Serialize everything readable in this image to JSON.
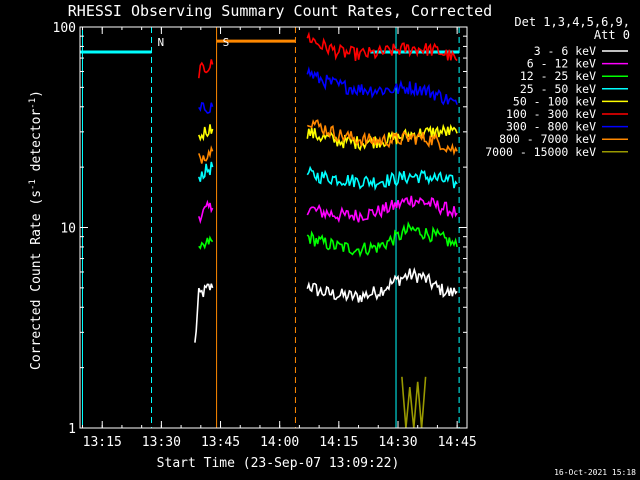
{
  "chart_data": {
    "type": "line",
    "title": "RHESSI Observing Summary Count Rates, Corrected",
    "xlabel": "Start Time (23-Sep-07 13:09:22)",
    "ylabel_main": "Corrected Count Rate (s",
    "ylabel_sup": "-1",
    "ylabel_mid": " detector",
    "ylabel_end": ")",
    "y_scale": "log",
    "ylim": [
      1,
      100
    ],
    "xlim": [
      "13:09:22",
      "14:47:30"
    ],
    "x_ticks": [
      "13:15",
      "13:30",
      "13:45",
      "14:00",
      "14:15",
      "14:30",
      "14:45"
    ],
    "y_ticks": [
      "1",
      "10",
      "100"
    ],
    "legend_header": [
      "Det 1,3,4,5,6,9,",
      "Att 0"
    ],
    "legend_position": "right",
    "footer_date": "16-Oct-2021 15:18",
    "attenuator_bar": {
      "color": "#00ffff",
      "value": 75,
      "segments": [
        [
          "13:09:22",
          "13:27:30"
        ],
        [
          "14:23:00",
          "14:45:30"
        ]
      ]
    },
    "saa_bar": {
      "color": "#ff8800",
      "value": 85,
      "segments": [
        [
          "13:44:00",
          "14:04:00"
        ]
      ]
    },
    "markers": [
      {
        "label": "N",
        "time": "13:27:30",
        "color": "#00ffff"
      },
      {
        "label": "S",
        "time": "13:44:00",
        "color": "#ff8800"
      }
    ],
    "vlines": [
      {
        "time": "13:10:00",
        "color": "#00ffff",
        "style": "solid"
      },
      {
        "time": "13:27:30",
        "color": "#00ffff",
        "style": "dashed"
      },
      {
        "time": "13:44:00",
        "color": "#ff8800",
        "style": "solid"
      },
      {
        "time": "14:04:00",
        "color": "#ff8800",
        "style": "dashed"
      },
      {
        "time": "14:29:30",
        "color": "#00ffff",
        "style": "solid"
      },
      {
        "time": "14:45:30",
        "color": "#00ffff",
        "style": "dashed"
      }
    ],
    "series": [
      {
        "name": "3 - 6 keV",
        "color": "#ffffff",
        "segments": [
          {
            "x": [
              "13:38:30",
              "13:39:30",
              "13:41:00",
              "13:42:00",
              "13:43:00"
            ],
            "y": [
              2.6,
              4.6,
              4.8,
              5.0,
              5.0
            ]
          },
          {
            "x": [
              "14:07:00",
              "14:10:00",
              "14:15:00",
              "14:20:00",
              "14:25:00",
              "14:30:00",
              "14:33:00",
              "14:36:00",
              "14:40:00",
              "14:43:00",
              "14:45:00"
            ],
            "y": [
              5.2,
              4.8,
              4.6,
              4.5,
              4.8,
              5.5,
              5.8,
              5.7,
              5.0,
              4.7,
              4.8
            ]
          }
        ]
      },
      {
        "name": "6 - 12 keV",
        "color": "#ff00ff",
        "segments": [
          {
            "x": [
              "13:39:30",
              "13:41:00",
              "13:42:00",
              "13:43:00"
            ],
            "y": [
              11.5,
              12.0,
              12.5,
              12.5
            ]
          },
          {
            "x": [
              "14:07:00",
              "14:10:00",
              "14:15:00",
              "14:20:00",
              "14:25:00",
              "14:30:00",
              "14:33:00",
              "14:36:00",
              "14:40:00",
              "14:43:00",
              "14:45:00"
            ],
            "y": [
              12.5,
              12.0,
              11.5,
              11.5,
              12.0,
              13.0,
              13.8,
              13.5,
              12.8,
              12.2,
              11.8
            ]
          }
        ]
      },
      {
        "name": "12 - 25 keV",
        "color": "#00ff00",
        "segments": [
          {
            "x": [
              "13:39:30",
              "13:41:00",
              "13:42:00",
              "13:43:00"
            ],
            "y": [
              7.5,
              8.0,
              8.5,
              8.5
            ]
          },
          {
            "x": [
              "14:07:00",
              "14:10:00",
              "14:15:00",
              "14:20:00",
              "14:25:00",
              "14:30:00",
              "14:33:00",
              "14:36:00",
              "14:40:00",
              "14:43:00",
              "14:45:00"
            ],
            "y": [
              9.0,
              8.5,
              8.0,
              7.8,
              8.0,
              9.0,
              9.8,
              9.5,
              9.0,
              8.5,
              8.0
            ]
          }
        ]
      },
      {
        "name": "25 - 50 keV",
        "color": "#00ffff",
        "segments": [
          {
            "x": [
              "13:39:30",
              "13:41:00",
              "13:42:00",
              "13:43:00"
            ],
            "y": [
              18.0,
              19.0,
              19.5,
              20.0
            ]
          },
          {
            "x": [
              "14:07:00",
              "14:10:00",
              "14:15:00",
              "14:20:00",
              "14:25:00",
              "14:30:00",
              "14:33:00",
              "14:36:00",
              "14:40:00",
              "14:43:00",
              "14:45:00"
            ],
            "y": [
              18.5,
              18.0,
              17.5,
              17.0,
              17.0,
              17.5,
              18.0,
              18.0,
              17.5,
              17.0,
              16.5
            ]
          }
        ]
      },
      {
        "name": "50 - 100 keV",
        "color": "#ffff00",
        "segments": [
          {
            "x": [
              "13:39:30",
              "13:41:00",
              "13:42:00",
              "13:43:00"
            ],
            "y": [
              28.0,
              30.0,
              31.0,
              31.0
            ]
          },
          {
            "x": [
              "14:07:00",
              "14:10:00",
              "14:15:00",
              "14:20:00",
              "14:25:00",
              "14:30:00",
              "14:33:00",
              "14:36:00",
              "14:40:00",
              "14:43:00",
              "14:45:00"
            ],
            "y": [
              30.0,
              28.5,
              27.0,
              26.5,
              27.0,
              28.0,
              29.0,
              29.5,
              30.0,
              30.0,
              29.5
            ]
          }
        ]
      },
      {
        "name": "100 - 300 keV",
        "color": "#ff0000",
        "segments": [
          {
            "x": [
              "13:39:30",
              "13:41:00",
              "13:42:00",
              "13:43:00"
            ],
            "y": [
              60.0,
              62.0,
              64.0,
              65.0
            ]
          },
          {
            "x": [
              "14:07:00",
              "14:10:00",
              "14:15:00",
              "14:20:00",
              "14:25:00",
              "14:30:00",
              "14:33:00",
              "14:36:00",
              "14:40:00",
              "14:43:00",
              "14:45:00"
            ],
            "y": [
              90.0,
              82.0,
              75.0,
              73.0,
              74.0,
              77.0,
              78.0,
              78.0,
              76.0,
              72.0,
              68.0
            ]
          }
        ]
      },
      {
        "name": "300 - 800 keV",
        "color": "#0000ff",
        "segments": [
          {
            "x": [
              "13:39:30",
              "13:41:00",
              "13:42:00",
              "13:43:00"
            ],
            "y": [
              38.0,
              39.5,
              40.0,
              40.0
            ]
          },
          {
            "x": [
              "14:07:00",
              "14:10:00",
              "14:15:00",
              "14:20:00",
              "14:25:00",
              "14:30:00",
              "14:33:00",
              "14:36:00",
              "14:40:00",
              "14:43:00",
              "14:45:00"
            ],
            "y": [
              60.0,
              55.0,
              51.0,
              49.0,
              48.5,
              49.0,
              50.0,
              49.0,
              46.0,
              43.0,
              41.0
            ]
          }
        ]
      },
      {
        "name": "800 - 7000 keV",
        "color": "#ff8800",
        "segments": [
          {
            "x": [
              "13:39:30",
              "13:41:00",
              "13:42:00",
              "13:43:00"
            ],
            "y": [
              22.0,
              23.0,
              24.0,
              24.0
            ]
          },
          {
            "x": [
              "14:07:00",
              "14:10:00",
              "14:15:00",
              "14:20:00",
              "14:25:00",
              "14:30:00",
              "14:33:00",
              "14:36:00",
              "14:40:00",
              "14:43:00",
              "14:45:00"
            ],
            "y": [
              35.0,
              32.0,
              29.0,
              27.5,
              27.0,
              27.5,
              28.0,
              28.0,
              27.0,
              25.0,
              24.0
            ]
          }
        ]
      },
      {
        "name": "7000 - 15000 keV",
        "color": "#999900",
        "segments": [
          {
            "x": [
              "14:31:00",
              "14:32:00",
              "14:33:00",
              "14:34:00",
              "14:35:00",
              "14:36:00",
              "14:37:00"
            ],
            "y": [
              1.8,
              1.0,
              1.6,
              1.0,
              1.7,
              1.0,
              1.8
            ]
          }
        ]
      }
    ]
  }
}
